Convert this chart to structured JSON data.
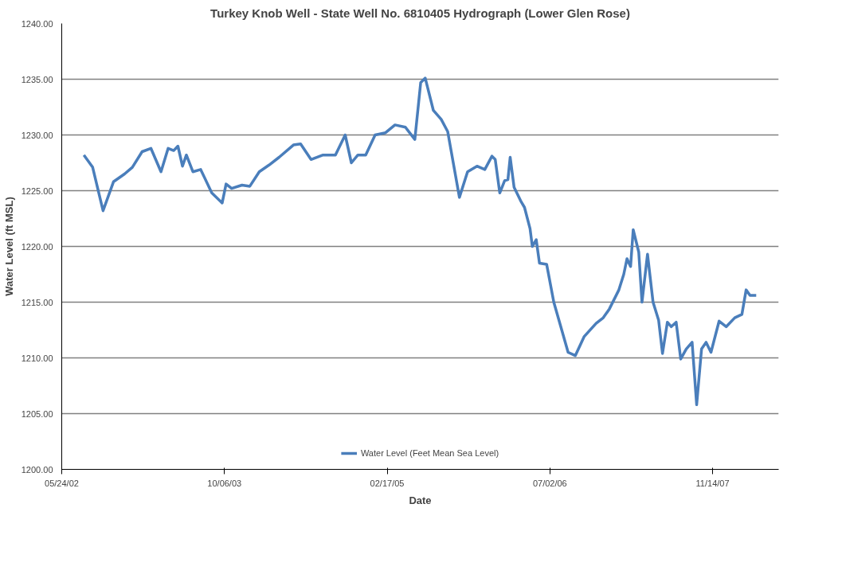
{
  "chart_data": {
    "type": "line",
    "title": "Turkey Knob Well - State Well No. 6810405 Hydrograph (Lower Glen Rose)",
    "xlabel": "Date",
    "ylabel": "Water Level (ft MSL)",
    "x": [
      "2002-07-31",
      "2002-08-27",
      "2002-09-28",
      "2002-10-30",
      "2002-12-03",
      "2002-12-27",
      "2003-01-26",
      "2003-02-22",
      "2003-03-25",
      "2003-04-16",
      "2003-05-03",
      "2003-05-16",
      "2003-05-30",
      "2003-06-11",
      "2003-07-01",
      "2003-07-25",
      "2003-08-28",
      "2003-09-29",
      "2003-10-11",
      "2003-10-28",
      "2003-11-29",
      "2003-12-23",
      "2004-01-21",
      "2004-02-20",
      "2004-03-22",
      "2004-05-05",
      "2004-05-27",
      "2004-06-28",
      "2004-08-04",
      "2004-09-11",
      "2004-10-11",
      "2004-10-30",
      "2004-11-19",
      "2004-12-13",
      "2005-01-11",
      "2005-02-12",
      "2005-03-13",
      "2005-04-14",
      "2005-05-13",
      "2005-05-31",
      "2005-06-14",
      "2005-07-09",
      "2005-08-02",
      "2005-08-22",
      "2005-09-27",
      "2005-10-22",
      "2005-11-20",
      "2005-12-14",
      "2006-01-05",
      "2006-01-15",
      "2006-01-29",
      "2006-02-13",
      "2006-02-23",
      "2006-03-02",
      "2006-03-14",
      "2006-04-03",
      "2006-04-15",
      "2006-05-02",
      "2006-05-09",
      "2006-05-21",
      "2006-05-31",
      "2006-06-22",
      "2006-07-14",
      "2006-08-27",
      "2006-09-18",
      "2006-10-15",
      "2006-11-21",
      "2006-12-13",
      "2007-01-01",
      "2007-01-30",
      "2007-02-14",
      "2007-02-24",
      "2007-03-07",
      "2007-03-15",
      "2007-04-01",
      "2007-04-11",
      "2007-04-28",
      "2007-05-15",
      "2007-06-01",
      "2007-06-13",
      "2007-06-28",
      "2007-07-10",
      "2007-07-25",
      "2007-08-08",
      "2007-08-25",
      "2007-09-12",
      "2007-09-26",
      "2007-10-11",
      "2007-10-25",
      "2007-11-09",
      "2007-12-04",
      "2007-12-26",
      "2008-01-21",
      "2008-02-12",
      "2008-02-25",
      "2008-03-08",
      "2008-03-27"
    ],
    "series": [
      {
        "name": "Water Level (Feet Mean Sea Level)",
        "color": "#4a7ebb",
        "values": [
          1228.2,
          1227.1,
          1223.2,
          1225.8,
          1226.5,
          1227.1,
          1228.5,
          1228.8,
          1226.7,
          1228.8,
          1228.6,
          1229.0,
          1227.2,
          1228.2,
          1226.7,
          1226.9,
          1224.8,
          1223.9,
          1225.6,
          1225.2,
          1225.5,
          1225.4,
          1226.7,
          1227.3,
          1228.0,
          1229.1,
          1229.2,
          1227.8,
          1228.2,
          1228.2,
          1230.0,
          1227.5,
          1228.2,
          1228.2,
          1230.0,
          1230.2,
          1230.9,
          1230.7,
          1229.6,
          1234.7,
          1235.1,
          1232.2,
          1231.4,
          1230.3,
          1224.4,
          1226.7,
          1227.2,
          1226.9,
          1228.1,
          1227.8,
          1224.8,
          1225.9,
          1226.0,
          1228.0,
          1225.3,
          1224.1,
          1223.5,
          1221.6,
          1220.0,
          1220.6,
          1218.5,
          1218.4,
          1215.0,
          1210.5,
          1210.2,
          1211.9,
          1213.1,
          1213.6,
          1214.4,
          1216.1,
          1217.5,
          1218.9,
          1218.2,
          1221.5,
          1219.5,
          1215.0,
          1219.3,
          1215.0,
          1213.4,
          1210.4,
          1213.2,
          1212.8,
          1213.2,
          1209.9,
          1210.8,
          1211.4,
          1205.8,
          1210.8,
          1211.4,
          1210.5,
          1213.3,
          1212.8,
          1213.6,
          1213.9,
          1216.1,
          1215.6,
          1215.6
        ]
      }
    ],
    "xlim": [
      "2002-05-24",
      "2008-06-04"
    ],
    "xticks": [
      {
        "value": "2002-05-24",
        "label": "05/24/02"
      },
      {
        "value": "2003-10-06",
        "label": "10/06/03"
      },
      {
        "value": "2005-02-17",
        "label": "02/17/05"
      },
      {
        "value": "2006-07-02",
        "label": "07/02/06"
      },
      {
        "value": "2007-11-14",
        "label": "11/14/07"
      }
    ],
    "ylim": [
      1200,
      1240
    ],
    "yticks": [
      {
        "value": 1200,
        "label": "1200.00"
      },
      {
        "value": 1205,
        "label": "1205.00"
      },
      {
        "value": 1210,
        "label": "1210.00"
      },
      {
        "value": 1215,
        "label": "1215.00"
      },
      {
        "value": 1220,
        "label": "1220.00"
      },
      {
        "value": 1225,
        "label": "1225.00"
      },
      {
        "value": 1230,
        "label": "1230.00"
      },
      {
        "value": 1235,
        "label": "1235.00"
      },
      {
        "value": 1240,
        "label": "1240.00"
      }
    ],
    "grid": "y",
    "legend": "bottom",
    "line_style": "solid"
  }
}
